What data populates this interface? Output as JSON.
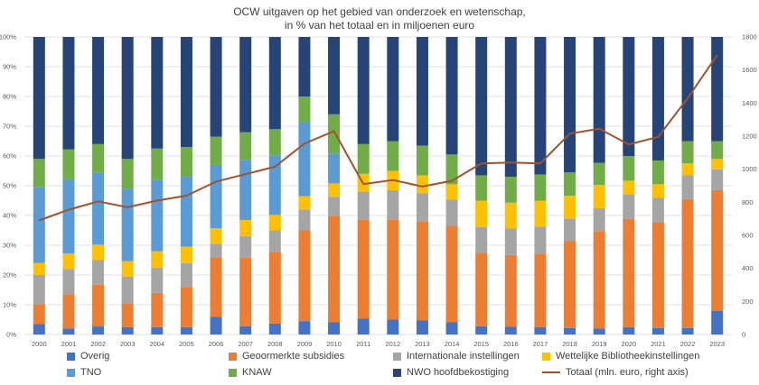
{
  "chart_data": {
    "type": "bar",
    "stacked": true,
    "title": "OCW uitgaven op het gebied van onderzoek en wetenschap,",
    "subtitle": "in % van het totaal en in miljoenen euro",
    "categories": [
      "2000",
      "2001",
      "2002",
      "2003",
      "2004",
      "2005",
      "2006",
      "2007",
      "2008",
      "2009",
      "2010",
      "2011",
      "2012",
      "2013",
      "2014",
      "2015",
      "2016",
      "2017",
      "2018",
      "2019",
      "2020",
      "2021",
      "2022",
      "2023"
    ],
    "ylim": [
      0,
      100
    ],
    "y2lim": [
      0,
      1800
    ],
    "y_ticks": [
      "0%",
      "10%",
      "20%",
      "30%",
      "40%",
      "50%",
      "60%",
      "70%",
      "80%",
      "90%",
      "100%"
    ],
    "y2_ticks": [
      "0",
      "200",
      "400",
      "600",
      "800",
      "1000",
      "1200",
      "1400",
      "1600",
      "1800"
    ],
    "series": [
      {
        "name": "Overig",
        "color": "#4472c4",
        "values": [
          3.5,
          2.0,
          2.7,
          2.5,
          2.5,
          2.5,
          6.0,
          2.8,
          3.7,
          4.5,
          4.2,
          5.3,
          5.0,
          4.7,
          4.2,
          2.8,
          2.6,
          2.5,
          2.2,
          2.0,
          2.5,
          2.2,
          2.2,
          8.0
        ]
      },
      {
        "name": "Geoormerkte subsidies",
        "color": "#ed7d31",
        "values": [
          6.5,
          11.5,
          14.0,
          8.0,
          11.5,
          13.5,
          20.0,
          23.0,
          24.0,
          30.5,
          35.5,
          33.2,
          33.5,
          33.3,
          32.3,
          24.6,
          24.1,
          24.7,
          29.3,
          32.8,
          36.4,
          35.5,
          43.3,
          40.5
        ]
      },
      {
        "name": "Internationale instellingen",
        "color": "#a5a5a5",
        "values": [
          10.0,
          8.5,
          8.3,
          9.0,
          8.5,
          8.0,
          4.5,
          7.2,
          7.3,
          7.0,
          6.6,
          9.5,
          10.0,
          9.5,
          8.9,
          8.7,
          8.9,
          9.0,
          7.5,
          7.7,
          8.3,
          8.3,
          8.0,
          7.0
        ]
      },
      {
        "name": "Wettelijke Bibliotheekinstellingen",
        "color": "#ffc000",
        "values": [
          4.0,
          5.2,
          5.2,
          5.2,
          5.5,
          5.5,
          5.2,
          5.5,
          5.2,
          4.5,
          4.5,
          6.0,
          6.5,
          6.0,
          5.1,
          8.9,
          8.7,
          8.8,
          7.6,
          7.8,
          4.5,
          4.5,
          4.0,
          3.5
        ]
      },
      {
        "name": "TNO",
        "color": "#5b9bd5",
        "values": [
          25.5,
          25.0,
          24.3,
          24.3,
          24.0,
          23.5,
          21.3,
          20.2,
          20.0,
          25.0,
          10.0,
          0,
          0,
          0,
          0,
          0,
          0,
          0,
          0,
          0,
          0,
          0,
          0,
          0
        ]
      },
      {
        "name": "KNAW",
        "color": "#70ad47",
        "values": [
          9.5,
          10.0,
          9.5,
          10.0,
          10.5,
          10.0,
          9.5,
          9.3,
          8.8,
          8.5,
          13.2,
          10.0,
          10.0,
          10.0,
          10.0,
          8.5,
          8.7,
          8.8,
          7.9,
          7.4,
          8.3,
          8.0,
          7.5,
          6.0
        ]
      },
      {
        "name": "NWO hoofdbekostiging",
        "color": "#264478",
        "values": [
          41.0,
          37.8,
          36.0,
          41.0,
          37.5,
          37.0,
          33.5,
          32.0,
          31.0,
          20.0,
          26.0,
          36.0,
          35.0,
          36.5,
          39.5,
          46.5,
          47.0,
          46.2,
          45.5,
          42.3,
          40.0,
          41.5,
          35.0,
          35.0
        ]
      }
    ],
    "line": {
      "name": "Totaal (mln. euro, right axis)",
      "color": "#a0522d",
      "axis": "right",
      "values": [
        690,
        755,
        805,
        770,
        810,
        840,
        925,
        970,
        1015,
        1155,
        1230,
        910,
        935,
        895,
        930,
        1035,
        1040,
        1035,
        1215,
        1245,
        1150,
        1195,
        1430,
        1690
      ]
    },
    "legend": "bottom"
  }
}
